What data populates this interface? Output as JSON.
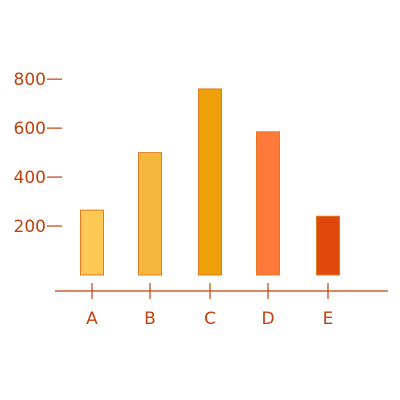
{
  "chart_data": {
    "type": "bar",
    "categories": [
      "A",
      "B",
      "C",
      "D",
      "E"
    ],
    "values": [
      265,
      500,
      760,
      585,
      240
    ],
    "bar_colors": [
      "#fdc853",
      "#f6b63c",
      "#eea00a",
      "#ff7a3a",
      "#e0470a"
    ],
    "bar_stroke": "#e27a20",
    "ylim": [
      0,
      900
    ],
    "yticks": [
      200,
      400,
      600,
      800
    ],
    "ytick_labels": [
      "200",
      "400",
      "600",
      "800"
    ],
    "grid": false,
    "axis_color": "#c2410c"
  }
}
